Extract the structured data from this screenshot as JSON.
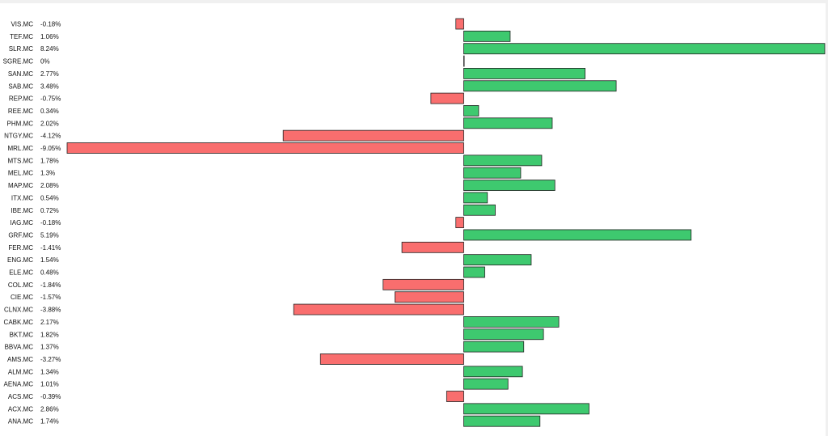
{
  "chart_data": {
    "type": "bar",
    "orientation": "horizontal",
    "title": "",
    "xlabel": "",
    "ylabel": "",
    "grid": false,
    "legend": "none",
    "xlim": [
      -9.05,
      8.24
    ],
    "colors": {
      "positive": "#3ec96f",
      "negative": "#f96e6e",
      "edge": "#222222",
      "background": "#ffffff",
      "frame": "#f0f0f0"
    },
    "categories": [
      "VIS.MC",
      "TEF.MC",
      "SLR.MC",
      "SGRE.MC",
      "SAN.MC",
      "SAB.MC",
      "REP.MC",
      "REE.MC",
      "PHM.MC",
      "NTGY.MC",
      "MRL.MC",
      "MTS.MC",
      "MEL.MC",
      "MAP.MC",
      "ITX.MC",
      "IBE.MC",
      "IAG.MC",
      "GRF.MC",
      "FER.MC",
      "ENG.MC",
      "ELE.MC",
      "COL.MC",
      "CIE.MC",
      "CLNX.MC",
      "CABK.MC",
      "BKT.MC",
      "BBVA.MC",
      "AMS.MC",
      "ALM.MC",
      "AENA.MC",
      "ACS.MC",
      "ACX.MC",
      "ANA.MC"
    ],
    "value_labels": [
      "-0.18%",
      "1.06%",
      "8.24%",
      "0%",
      "2.77%",
      "3.48%",
      "-0.75%",
      "0.34%",
      "2.02%",
      "-4.12%",
      "-9.05%",
      "1.78%",
      "1.3%",
      "2.08%",
      "0.54%",
      "0.72%",
      "-0.18%",
      "5.19%",
      "-1.41%",
      "1.54%",
      "0.48%",
      "-1.84%",
      "-1.57%",
      "-3.88%",
      "2.17%",
      "1.82%",
      "1.37%",
      "-3.27%",
      "1.34%",
      "1.01%",
      "-0.39%",
      "2.86%",
      "1.74%"
    ],
    "values": [
      -0.18,
      1.06,
      8.24,
      0,
      2.77,
      3.48,
      -0.75,
      0.34,
      2.02,
      -4.12,
      -9.05,
      1.78,
      1.3,
      2.08,
      0.54,
      0.72,
      -0.18,
      5.19,
      -1.41,
      1.54,
      0.48,
      -1.84,
      -1.57,
      -3.88,
      2.17,
      1.82,
      1.37,
      -3.27,
      1.34,
      1.01,
      -0.39,
      2.86,
      1.74
    ]
  }
}
